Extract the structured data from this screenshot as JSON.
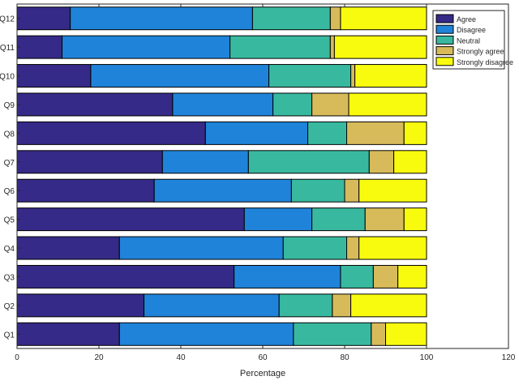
{
  "chart_data": {
    "type": "bar",
    "orientation": "horizontal",
    "stacked": true,
    "title": "",
    "xlabel": "Percentage",
    "ylabel": "",
    "xlim": [
      0,
      120
    ],
    "xticks": [
      0,
      20,
      40,
      60,
      80,
      100,
      120
    ],
    "grid": false,
    "legend_position": "top-right",
    "categories": [
      "Q1",
      "Q2",
      "Q3",
      "Q4",
      "Q5",
      "Q6",
      "Q7",
      "Q8",
      "Q9",
      "Q10",
      "Q11",
      "Q12"
    ],
    "series": [
      {
        "name": "Agree",
        "color": "#352a87",
        "values": [
          25,
          31,
          53,
          25,
          55.5,
          33.5,
          35.5,
          46,
          38,
          18,
          11,
          13
        ]
      },
      {
        "name": "Disagree",
        "color": "#1f83d9",
        "values": [
          42.5,
          33,
          26,
          40,
          16.5,
          33.5,
          21,
          25,
          24.5,
          43.5,
          41,
          44.5
        ]
      },
      {
        "name": "Neutral",
        "color": "#38b99f",
        "values": [
          19,
          13,
          8,
          15.5,
          13,
          13,
          29.5,
          9.5,
          9.5,
          20,
          24.5,
          19
        ]
      },
      {
        "name": "Strongly agree",
        "color": "#d7ba5a",
        "values": [
          3.5,
          4.5,
          6,
          3,
          9.5,
          3.5,
          6,
          14,
          9,
          1,
          1,
          2.5
        ]
      },
      {
        "name": "Strongly disagree",
        "color": "#f9fb0e",
        "values": [
          10,
          18.5,
          7,
          16.5,
          5.5,
          16.5,
          8,
          5.5,
          19,
          17.5,
          22.5,
          21
        ]
      }
    ]
  }
}
